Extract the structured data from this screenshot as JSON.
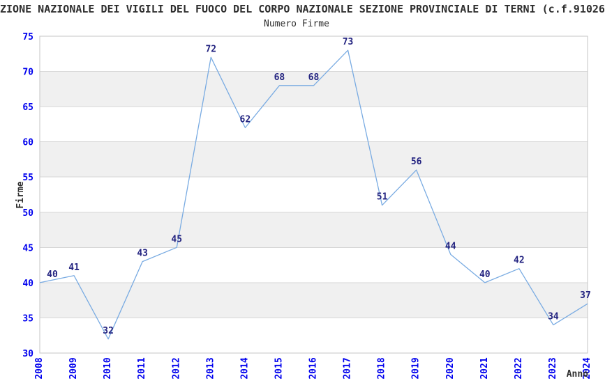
{
  "header": {
    "title": "ZIONE NAZIONALE DEI VIGILI DEL FUOCO DEL CORPO NAZIONALE SEZIONE PROVINCIALE DI TERNI (c.f.91026",
    "subtitle": "Numero Firme"
  },
  "chart_data": {
    "type": "line",
    "title": "Numero Firme",
    "xlabel": "Anno",
    "ylabel": "Firme",
    "x": [
      2008,
      2009,
      2010,
      2011,
      2012,
      2013,
      2014,
      2015,
      2016,
      2017,
      2018,
      2019,
      2020,
      2021,
      2022,
      2023,
      2024
    ],
    "values": [
      40,
      41,
      32,
      43,
      45,
      72,
      62,
      68,
      68,
      73,
      51,
      56,
      44,
      40,
      42,
      34,
      37
    ],
    "ylim": [
      30,
      75
    ],
    "ytick_step": 5,
    "yticks": [
      30,
      35,
      40,
      45,
      50,
      55,
      60,
      65,
      70,
      75
    ],
    "grid": "horizontal-bands-alternating",
    "legend": "none",
    "point_labels_shown": true,
    "colors": {
      "line": "#79abe2",
      "tick_labels": "#0000ee",
      "point_labels": "#232380",
      "band_fill": "#f0f0f0",
      "gridline": "#d6d6d6",
      "plot_border": "#c6c6c6",
      "text": "#2e2e2e"
    }
  }
}
